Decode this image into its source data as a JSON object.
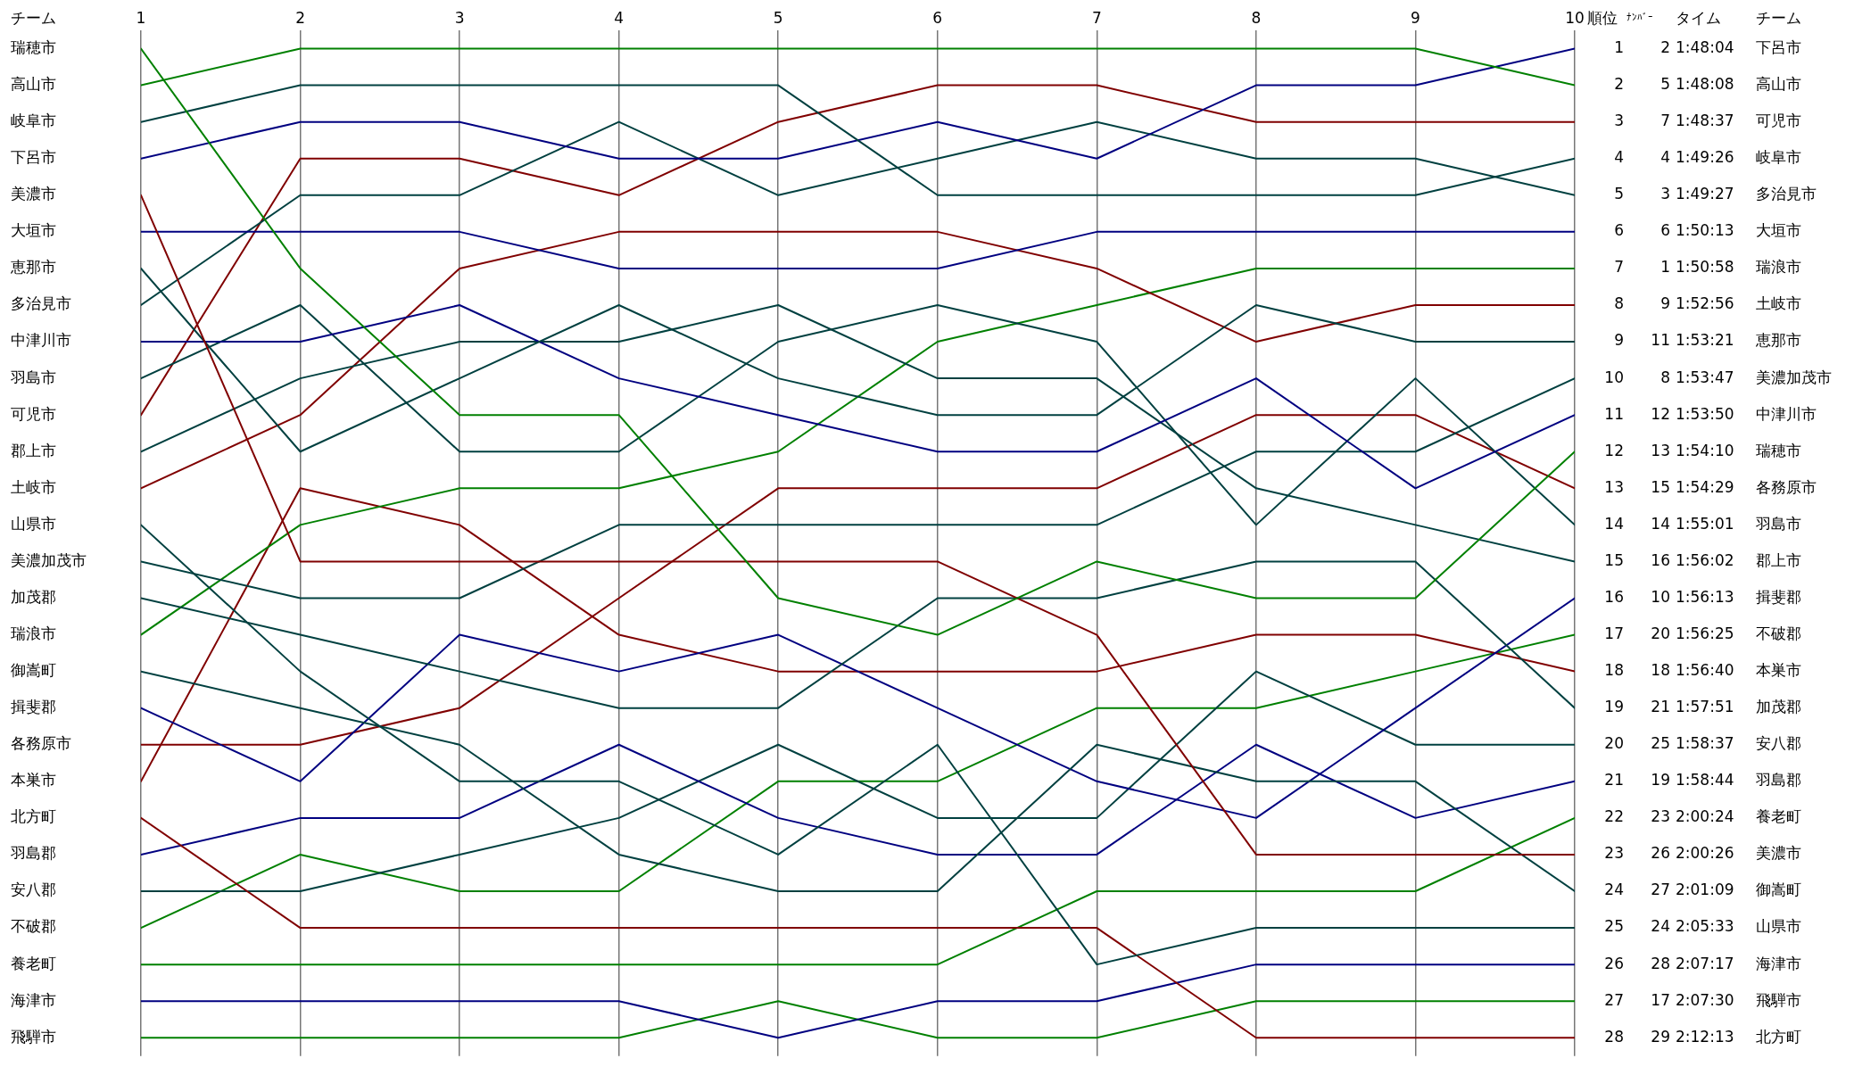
{
  "chart_data": {
    "type": "line",
    "ylabel": "順位",
    "legend_title": "チーム",
    "x": [
      1,
      2,
      3,
      4,
      5,
      6,
      7,
      8,
      9,
      10
    ],
    "xlim": [
      1,
      10
    ],
    "xticks": [
      1,
      2,
      3,
      4,
      5,
      6,
      7,
      8,
      9,
      10
    ],
    "ylim": [
      28.5,
      0.5
    ],
    "yticks": [
      1,
      2,
      3,
      4,
      5,
      6,
      7,
      8,
      9,
      10,
      11,
      12,
      13,
      14,
      15,
      16,
      17,
      18,
      19,
      20,
      21,
      22,
      23,
      24,
      25,
      26,
      27,
      28
    ],
    "grid": "x",
    "series": [
      {
        "name": "瑞穂市",
        "color": "#008000",
        "values": [
          1,
          7,
          11,
          11,
          16,
          17,
          15,
          16,
          16,
          12
        ]
      },
      {
        "name": "高山市",
        "color": "#008000",
        "values": [
          2,
          1,
          1,
          1,
          1,
          1,
          1,
          1,
          1,
          2
        ]
      },
      {
        "name": "岐阜市",
        "color": "#004040",
        "values": [
          3,
          2,
          2,
          2,
          2,
          5,
          5,
          5,
          5,
          4
        ]
      },
      {
        "name": "下呂市",
        "color": "#000080",
        "values": [
          4,
          3,
          3,
          4,
          4,
          3,
          4,
          2,
          2,
          1
        ]
      },
      {
        "name": "美濃市",
        "color": "#800000",
        "values": [
          5,
          15,
          15,
          15,
          15,
          15,
          17,
          23,
          23,
          23
        ]
      },
      {
        "name": "大垣市",
        "color": "#000080",
        "values": [
          6,
          6,
          6,
          7,
          7,
          7,
          6,
          6,
          6,
          6
        ]
      },
      {
        "name": "恵那市",
        "color": "#004040",
        "values": [
          7,
          12,
          10,
          8,
          10,
          11,
          11,
          8,
          9,
          9
        ]
      },
      {
        "name": "多治見市",
        "color": "#004040",
        "values": [
          8,
          5,
          5,
          3,
          5,
          4,
          3,
          4,
          4,
          5
        ]
      },
      {
        "name": "中津川市",
        "color": "#000080",
        "values": [
          9,
          9,
          8,
          10,
          11,
          12,
          12,
          10,
          13,
          11
        ]
      },
      {
        "name": "羽島市",
        "color": "#004040",
        "values": [
          10,
          8,
          12,
          12,
          9,
          8,
          9,
          14,
          10,
          14
        ]
      },
      {
        "name": "可児市",
        "color": "#800000",
        "values": [
          11,
          4,
          4,
          5,
          3,
          2,
          2,
          3,
          3,
          3
        ]
      },
      {
        "name": "郡上市",
        "color": "#004040",
        "values": [
          12,
          10,
          9,
          9,
          8,
          10,
          10,
          13,
          14,
          15
        ]
      },
      {
        "name": "土岐市",
        "color": "#800000",
        "values": [
          13,
          11,
          7,
          6,
          6,
          6,
          7,
          9,
          8,
          8
        ]
      },
      {
        "name": "山県市",
        "color": "#004040",
        "values": [
          14,
          18,
          21,
          21,
          23,
          20,
          26,
          25,
          25,
          25
        ]
      },
      {
        "name": "美濃加茂市",
        "color": "#004040",
        "values": [
          15,
          16,
          16,
          14,
          14,
          14,
          14,
          12,
          12,
          10
        ]
      },
      {
        "name": "加茂郡",
        "color": "#004040",
        "values": [
          16,
          17,
          18,
          19,
          19,
          16,
          16,
          15,
          15,
          19
        ]
      },
      {
        "name": "瑞浪市",
        "color": "#008000",
        "values": [
          17,
          14,
          13,
          13,
          12,
          9,
          8,
          7,
          7,
          7
        ]
      },
      {
        "name": "御嵩町",
        "color": "#004040",
        "values": [
          18,
          19,
          20,
          23,
          24,
          24,
          20,
          21,
          21,
          24
        ]
      },
      {
        "name": "揖斐郡",
        "color": "#000080",
        "values": [
          19,
          21,
          17,
          18,
          17,
          19,
          21,
          22,
          19,
          16
        ]
      },
      {
        "name": "各務原市",
        "color": "#800000",
        "values": [
          20,
          20,
          19,
          16,
          13,
          13,
          13,
          11,
          11,
          13
        ]
      },
      {
        "name": "本巣市",
        "color": "#800000",
        "values": [
          21,
          13,
          14,
          17,
          18,
          18,
          18,
          17,
          17,
          18
        ]
      },
      {
        "name": "北方町",
        "color": "#800000",
        "values": [
          22,
          25,
          25,
          25,
          25,
          25,
          25,
          28,
          28,
          28
        ]
      },
      {
        "name": "羽島郡",
        "color": "#000080",
        "values": [
          23,
          22,
          22,
          20,
          22,
          23,
          23,
          20,
          22,
          21
        ]
      },
      {
        "name": "安八郡",
        "color": "#004040",
        "values": [
          24,
          24,
          23,
          22,
          20,
          22,
          22,
          18,
          20,
          20
        ]
      },
      {
        "name": "不破郡",
        "color": "#008000",
        "values": [
          25,
          23,
          24,
          24,
          21,
          21,
          19,
          19,
          18,
          17
        ]
      },
      {
        "name": "養老町",
        "color": "#008000",
        "values": [
          26,
          26,
          26,
          26,
          26,
          26,
          24,
          24,
          24,
          22
        ]
      },
      {
        "name": "海津市",
        "color": "#000080",
        "values": [
          27,
          27,
          27,
          27,
          28,
          27,
          27,
          26,
          26,
          26
        ]
      },
      {
        "name": "飛騨市",
        "color": "#008000",
        "values": [
          28,
          28,
          28,
          28,
          27,
          28,
          28,
          27,
          27,
          27
        ]
      }
    ],
    "annotations": [
      "チーム",
      "ﾅﾝﾊﾞｰ",
      "タイム",
      "2",
      "1:48:04",
      "5",
      "1:48:08",
      "7",
      "1:48:37",
      "4",
      "1:49:26",
      "3",
      "1:49:27",
      "6",
      "1:50:13",
      "1",
      "1:50:58",
      "9",
      "1:52:56",
      "11",
      "1:53:21",
      "8",
      "1:53:47",
      "12",
      "1:53:50",
      "13",
      "1:54:10",
      "15",
      "1:54:29",
      "14",
      "1:55:01",
      "16",
      "1:56:02",
      "10",
      "1:56:13",
      "20",
      "1:56:25",
      "18",
      "1:56:40",
      "21",
      "1:57:51",
      "25",
      "1:58:37",
      "19",
      "1:58:44",
      "23",
      "2:00:24",
      "26",
      "2:00:26",
      "27",
      "2:01:09",
      "24",
      "2:05:33",
      "28",
      "2:07:17",
      "17",
      "2:07:30",
      "29",
      "2:12:13"
    ]
  }
}
